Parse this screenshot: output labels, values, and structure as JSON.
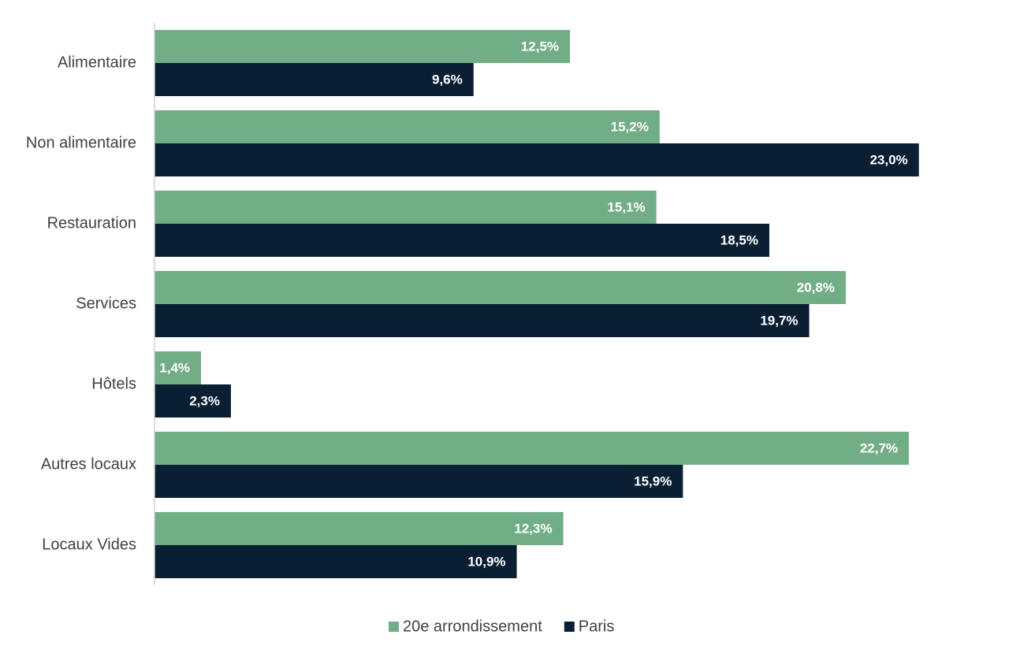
{
  "chart_data": {
    "type": "hbar",
    "categories": [
      "Alimentaire",
      "Non alimentaire",
      "Restauration",
      "Services",
      "Hôtels",
      "Autres locaux",
      "Locaux Vides"
    ],
    "series": [
      {
        "name": "20e arrondissement",
        "color": "#72ae85",
        "values": [
          12.5,
          15.2,
          15.1,
          20.8,
          1.4,
          22.7,
          12.3
        ],
        "value_labels": [
          "12,5%",
          "15,2%",
          "15,1%",
          "20,8%",
          "1,4%",
          "22,7%",
          "12,3%"
        ]
      },
      {
        "name": "Paris",
        "color": "#0b1f33",
        "values": [
          9.6,
          23.0,
          18.5,
          19.7,
          2.3,
          15.9,
          10.9
        ],
        "value_labels": [
          "9,6%",
          "23,0%",
          "18,5%",
          "19,7%",
          "2,3%",
          "15,9%",
          "10,9%"
        ]
      }
    ],
    "xlim": [
      0,
      25
    ],
    "legend": "bottom"
  }
}
